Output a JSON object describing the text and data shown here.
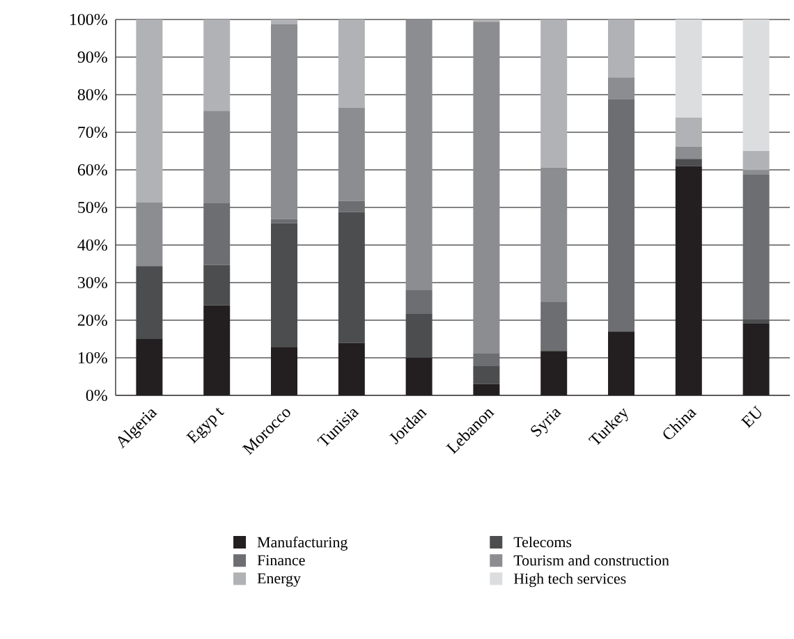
{
  "chart_data": {
    "type": "bar",
    "stacked": true,
    "categories": [
      "Algeria",
      "Egyp t",
      "Morocco",
      "Tunisia",
      "Jordan",
      "Lebanon",
      "Syria",
      "Turkey",
      "China",
      "EU"
    ],
    "series": [
      {
        "name": "Manufacturing",
        "color": "#231f20",
        "values": [
          15,
          24,
          12.9,
          14,
          10,
          3,
          11.8,
          17,
          61,
          19.2
        ]
      },
      {
        "name": "Telecoms",
        "color": "#4c4d4f",
        "values": [
          19.4,
          10.7,
          32.9,
          34.8,
          11.8,
          4.8,
          0,
          0,
          1.9,
          1
        ]
      },
      {
        "name": "Finance",
        "color": "#6d6e71",
        "values": [
          0,
          16.4,
          1.1,
          2.9,
          6.3,
          3.3,
          13,
          61.7,
          0,
          38.5
        ]
      },
      {
        "name": "Tourism and construction",
        "color": "#8c8d90",
        "values": [
          17,
          24.6,
          51.9,
          24.8,
          71.9,
          88.3,
          35.8,
          5.9,
          3.2,
          1.2
        ]
      },
      {
        "name": "Energy",
        "color": "#b1b2b5",
        "values": [
          48.6,
          24.3,
          1.2,
          23.5,
          0,
          0.6,
          39.4,
          15.4,
          7.8,
          5.1
        ]
      },
      {
        "name": "High tech services",
        "color": "#dcdddf",
        "values": [
          0,
          0,
          0,
          0,
          0,
          0,
          0,
          0,
          26.1,
          35
        ]
      }
    ],
    "ylim": [
      0,
      100
    ],
    "yticks": [
      {
        "value": 0,
        "label": "0%"
      },
      {
        "value": 10,
        "label": "10%"
      },
      {
        "value": 20,
        "label": "20%"
      },
      {
        "value": 30,
        "label": "30%"
      },
      {
        "value": 40,
        "label": "40%"
      },
      {
        "value": 50,
        "label": "50%"
      },
      {
        "value": 60,
        "label": "60%"
      },
      {
        "value": 70,
        "label": "70%"
      },
      {
        "value": 80,
        "label": "80%"
      },
      {
        "value": 90,
        "label": "90%"
      },
      {
        "value": 100,
        "label": "100%"
      }
    ],
    "grid": "y",
    "legend": "bottom"
  }
}
